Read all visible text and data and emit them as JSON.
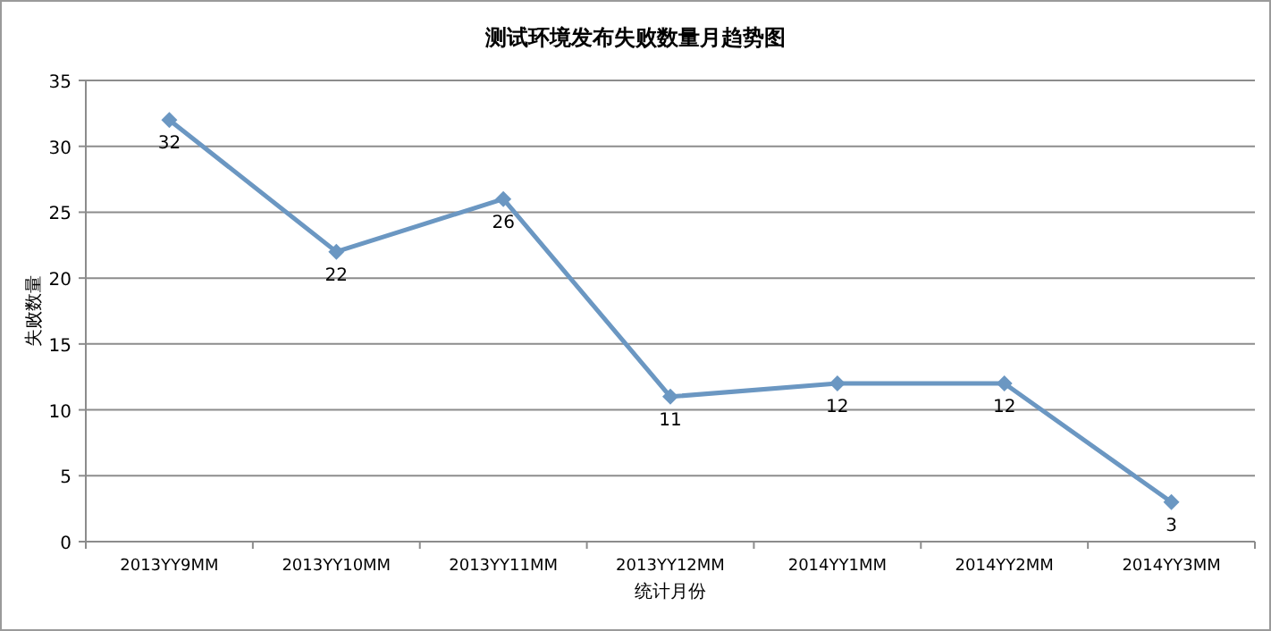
{
  "chart_data": {
    "type": "line",
    "title": "测试环境发布失败数量月趋势图",
    "xlabel": "统计月份",
    "ylabel": "失败数量",
    "categories": [
      "2013YY9MM",
      "2013YY10MM",
      "2013YY11MM",
      "2013YY12MM",
      "2014YY1MM",
      "2014YY2MM",
      "2014YY3MM"
    ],
    "series": [
      {
        "color": "#6b97c2",
        "values": [
          32,
          22,
          26,
          11,
          12,
          12,
          3
        ]
      }
    ],
    "ylim": [
      0,
      35
    ],
    "yticks": [
      0,
      5,
      10,
      15,
      20,
      25,
      30,
      35
    ],
    "grid": "y",
    "marker": "diamond",
    "line_style": "solid",
    "data_labels": true
  }
}
